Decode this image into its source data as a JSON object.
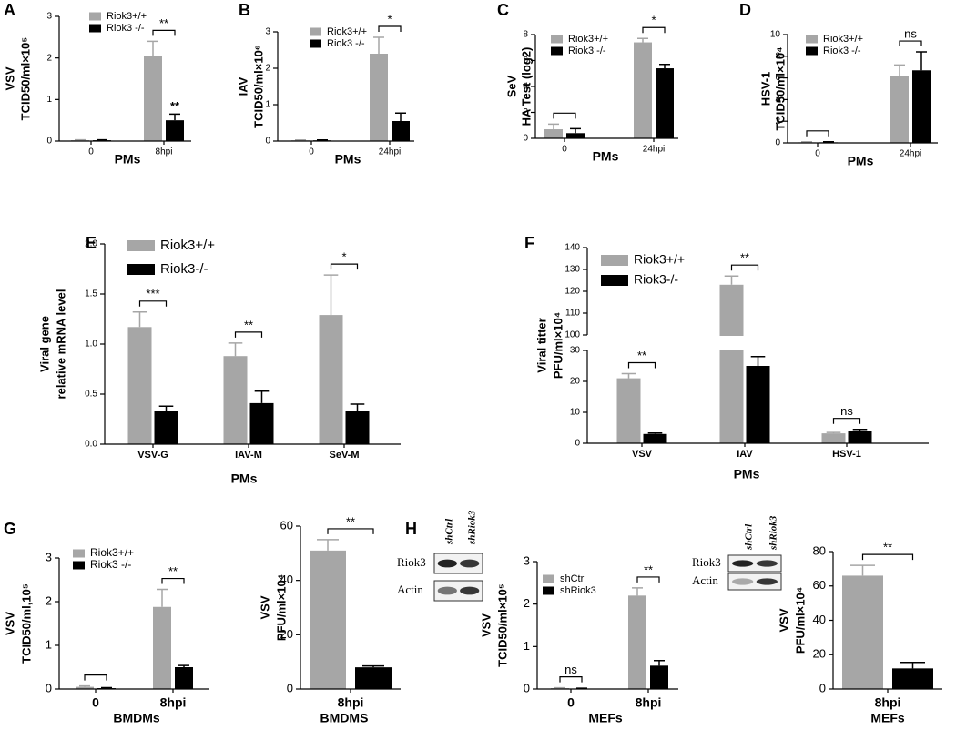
{
  "panels": [
    "A",
    "B",
    "C",
    "D",
    "E",
    "F",
    "G",
    "H"
  ],
  "blots": [
    {
      "columns": [
        "shCtrl",
        "shRiok3"
      ],
      "rows": [
        "Riok3",
        "Actin"
      ]
    },
    {
      "columns": [
        "shCtrl",
        "shRiok3"
      ],
      "rows": [
        "Riok3",
        "Actin"
      ]
    }
  ],
  "chart_data": [
    {
      "type": "bar",
      "ylabel": [
        "VSV",
        "TCID50/ml×10⁵"
      ],
      "xlabel": "PMs",
      "categories": [
        "0",
        "8hpi"
      ],
      "series": [
        {
          "name": "Riok3+/+",
          "color": "#a6a6a6",
          "values": [
            0.02,
            2.05
          ],
          "errors": [
            0.01,
            0.35
          ]
        },
        {
          "name": "Riok3 -/-",
          "color": "#000000",
          "values": [
            0.02,
            0.5
          ],
          "errors": [
            0.01,
            0.15
          ]
        }
      ],
      "ylim": [
        0,
        3
      ],
      "yticks": [
        0,
        1,
        2,
        3
      ],
      "significance": [
        null,
        "**"
      ],
      "annotations": [
        "**"
      ]
    },
    {
      "type": "bar",
      "ylabel": [
        "IAV",
        "TCID50/ml×10⁶"
      ],
      "xlabel": "PMs",
      "categories": [
        "0",
        "24hpi"
      ],
      "series": [
        {
          "name": "Riok3+/+",
          "color": "#a6a6a6",
          "values": [
            0.02,
            2.4
          ],
          "errors": [
            0.01,
            0.45
          ]
        },
        {
          "name": "Riok3 -/-",
          "color": "#000000",
          "values": [
            0.02,
            0.55
          ],
          "errors": [
            0.01,
            0.22
          ]
        }
      ],
      "ylim": [
        0,
        3
      ],
      "yticks": [
        0,
        1,
        2,
        3
      ],
      "significance": [
        null,
        "*"
      ]
    },
    {
      "type": "bar",
      "ylabel": [
        "SeV",
        "HA Test (log2)"
      ],
      "xlabel": "PMs",
      "categories": [
        "0",
        "24hpi"
      ],
      "series": [
        {
          "name": "Riok3+/+",
          "color": "#a6a6a6",
          "values": [
            0.7,
            7.4
          ],
          "errors": [
            0.4,
            0.3
          ]
        },
        {
          "name": "Riok3 -/-",
          "color": "#000000",
          "values": [
            0.4,
            5.4
          ],
          "errors": [
            0.35,
            0.3
          ]
        }
      ],
      "ylim": [
        0,
        8
      ],
      "yticks": [
        0,
        2,
        4,
        6,
        8
      ],
      "significance": [
        null,
        "*"
      ]
    },
    {
      "type": "bar",
      "ylabel": [
        "HSV-1",
        "TCID50/ml×10⁴"
      ],
      "xlabel": "PMs",
      "categories": [
        "0",
        "24hpi"
      ],
      "series": [
        {
          "name": "Riok3+/+",
          "color": "#a6a6a6",
          "values": [
            0.05,
            6.2
          ],
          "errors": [
            0.05,
            1.0
          ]
        },
        {
          "name": "Riok3 -/-",
          "color": "#000000",
          "values": [
            0.05,
            6.7
          ],
          "errors": [
            0.05,
            1.7
          ]
        }
      ],
      "ylim": [
        0,
        10
      ],
      "yticks": [
        0,
        2,
        4,
        6,
        8,
        10
      ],
      "significance": [
        null,
        "ns"
      ]
    },
    {
      "type": "bar",
      "ylabel": [
        "Viral gene",
        "relative mRNA level"
      ],
      "xlabel": "PMs",
      "categories": [
        "VSV-G",
        "IAV-M",
        "SeV-M"
      ],
      "series": [
        {
          "name": "Riok3+/+",
          "color": "#a6a6a6",
          "values": [
            1.17,
            0.88,
            1.29
          ],
          "errors": [
            0.15,
            0.13,
            0.4
          ]
        },
        {
          "name": "Riok3-/-",
          "color": "#000000",
          "values": [
            0.33,
            0.41,
            0.33
          ],
          "errors": [
            0.05,
            0.12,
            0.07
          ]
        }
      ],
      "ylim": [
        0,
        2
      ],
      "yticks": [
        {
          "value": 0,
          "label": "0.0"
        },
        0.5,
        {
          "value": 1,
          "label": "1.0"
        },
        1.5,
        {
          "value": 2,
          "label": "2.0"
        }
      ],
      "significance": [
        "***",
        "**",
        "*"
      ]
    },
    {
      "type": "broken-bar",
      "ylabel": [
        "Viral titter",
        "PFU/ml×10⁴"
      ],
      "xlabel": "PMs",
      "categories": [
        "VSV",
        "IAV",
        "HSV-1"
      ],
      "series": [
        {
          "name": "Riok3+/+",
          "color": "#a6a6a6",
          "values": [
            21,
            123,
            3.2
          ],
          "errors": [
            1.5,
            4,
            0.3
          ]
        },
        {
          "name": "Riok3-/-",
          "color": "#000000",
          "values": [
            3,
            25,
            4
          ],
          "errors": [
            0.3,
            3,
            0.5
          ]
        }
      ],
      "ylim_lower": [
        0,
        30
      ],
      "yticks_lower": [
        0,
        10,
        20,
        30
      ],
      "ylim_upper": [
        100,
        140
      ],
      "yticks_upper": [
        100,
        110,
        120,
        130,
        140
      ],
      "significance": [
        "**",
        "**",
        "ns"
      ]
    },
    {
      "type": "bar",
      "ylabel": [
        "VSV",
        "TCID50/ml,10⁵"
      ],
      "xlabel": "BMDMs",
      "categories": [
        "0",
        "8hpi"
      ],
      "series": [
        {
          "name": "Riok3+/+",
          "color": "#a6a6a6",
          "values": [
            0.05,
            1.88
          ],
          "errors": [
            0.02,
            0.4
          ]
        },
        {
          "name": "Riok3 -/-",
          "color": "#000000",
          "values": [
            0.02,
            0.5
          ],
          "errors": [
            0.01,
            0.04
          ]
        }
      ],
      "ylim": [
        0,
        3
      ],
      "yticks": [
        0,
        1,
        2,
        3
      ],
      "significance": [
        null,
        "**"
      ]
    },
    {
      "type": "bar",
      "ylabel": [
        "VSV",
        "PFU/ml×10⁴"
      ],
      "xlabel": "BMDMS",
      "categories": [
        "8hpi"
      ],
      "series": [
        {
          "color": "#a6a6a6",
          "values": [
            51
          ],
          "errors": [
            4
          ]
        },
        {
          "color": "#000000",
          "values": [
            8
          ],
          "errors": [
            0.5
          ]
        }
      ],
      "ylim": [
        0,
        60
      ],
      "yticks": [
        0,
        20,
        40,
        60
      ],
      "significance": [
        "**"
      ]
    },
    {
      "type": "bar",
      "ylabel": [
        "VSV",
        "TCID50/ml×10⁵"
      ],
      "xlabel": "MEFs",
      "categories": [
        "0",
        "8hpi"
      ],
      "series": [
        {
          "name": "shCtrl",
          "color": "#a6a6a6",
          "values": [
            0.02,
            2.2
          ],
          "errors": [
            0.01,
            0.18
          ]
        },
        {
          "name": "shRiok3",
          "color": "#000000",
          "values": [
            0.01,
            0.55
          ],
          "errors": [
            0.01,
            0.12
          ]
        }
      ],
      "ylim": [
        0,
        3
      ],
      "yticks": [
        0,
        1,
        2,
        3
      ],
      "significance": [
        "ns",
        "**"
      ]
    },
    {
      "type": "bar",
      "ylabel": [
        "VSV",
        "PFU/ml×10⁴"
      ],
      "xlabel": "MEFs",
      "categories": [
        "8hpi"
      ],
      "series": [
        {
          "color": "#a6a6a6",
          "values": [
            66
          ],
          "errors": [
            6
          ]
        },
        {
          "color": "#000000",
          "values": [
            12
          ],
          "errors": [
            3.5
          ]
        }
      ],
      "ylim": [
        0,
        80
      ],
      "yticks": [
        0,
        20,
        40,
        60,
        80
      ],
      "significance": [
        "**"
      ]
    }
  ]
}
